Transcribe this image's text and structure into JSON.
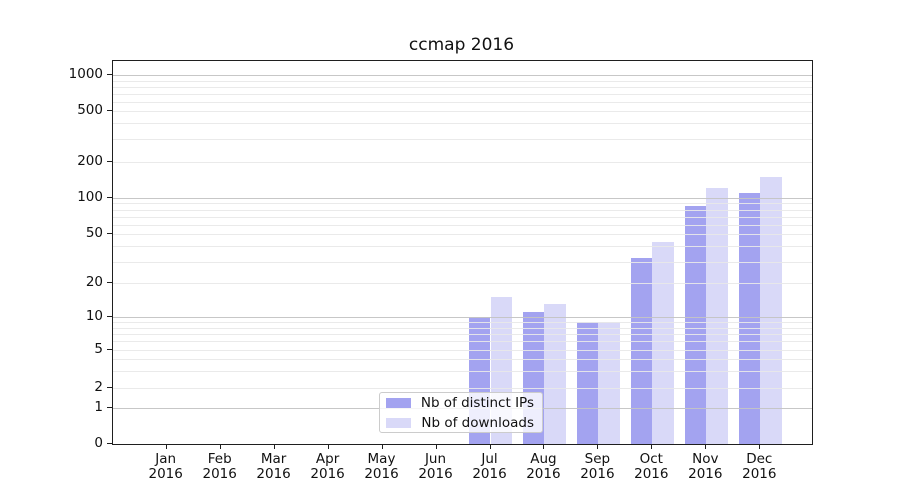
{
  "title": "ccmap 2016",
  "chart_data": {
    "type": "bar",
    "title": "ccmap 2016",
    "year": "2016",
    "months": [
      "Jan",
      "Feb",
      "Mar",
      "Apr",
      "May",
      "Jun",
      "Jul",
      "Aug",
      "Sep",
      "Oct",
      "Nov",
      "Dec"
    ],
    "categories": [
      "Jan 2016",
      "Feb 2016",
      "Mar 2016",
      "Apr 2016",
      "May 2016",
      "Jun 2016",
      "Jul 2016",
      "Aug 2016",
      "Sep 2016",
      "Oct 2016",
      "Nov 2016",
      "Dec 2016"
    ],
    "series": [
      {
        "name": "Nb of distinct IPs",
        "color": "#a3a3f0",
        "values": [
          0,
          0,
          0,
          0,
          0,
          0,
          10,
          11,
          9,
          32,
          85,
          110
        ]
      },
      {
        "name": "Nb of downloads",
        "color": "#d9d9f8",
        "values": [
          0,
          0,
          0,
          0,
          0,
          0,
          15,
          13,
          9,
          43,
          120,
          150
        ]
      }
    ],
    "y_axis": {
      "scale": "symlog-like",
      "ylim": [
        0,
        1300
      ],
      "tick_values": [
        0,
        1,
        2,
        5,
        10,
        20,
        50,
        100,
        200,
        500,
        1000
      ],
      "tick_labels": [
        "0",
        "1",
        "2",
        "5",
        "10",
        "20",
        "50",
        "100",
        "200",
        "500",
        "1000"
      ],
      "major_gridline_values": [
        1,
        10,
        100,
        1000
      ],
      "minor_gridline_values": [
        2,
        3,
        4,
        5,
        6,
        7,
        8,
        9,
        20,
        30,
        40,
        50,
        60,
        70,
        80,
        90,
        200,
        300,
        400,
        500,
        600,
        700,
        800,
        900
      ]
    },
    "grid": "both",
    "legend_position": "inside bottom-center",
    "colors": {
      "distinct_ips": "#a3a3f0",
      "downloads": "#d9d9f8",
      "major_grid": "#c6c6c6",
      "minor_grid": "#eaeaea",
      "spine": "#1f1f1f"
    }
  },
  "legend": {
    "items": [
      "Nb of distinct IPs",
      "Nb of downloads"
    ]
  }
}
